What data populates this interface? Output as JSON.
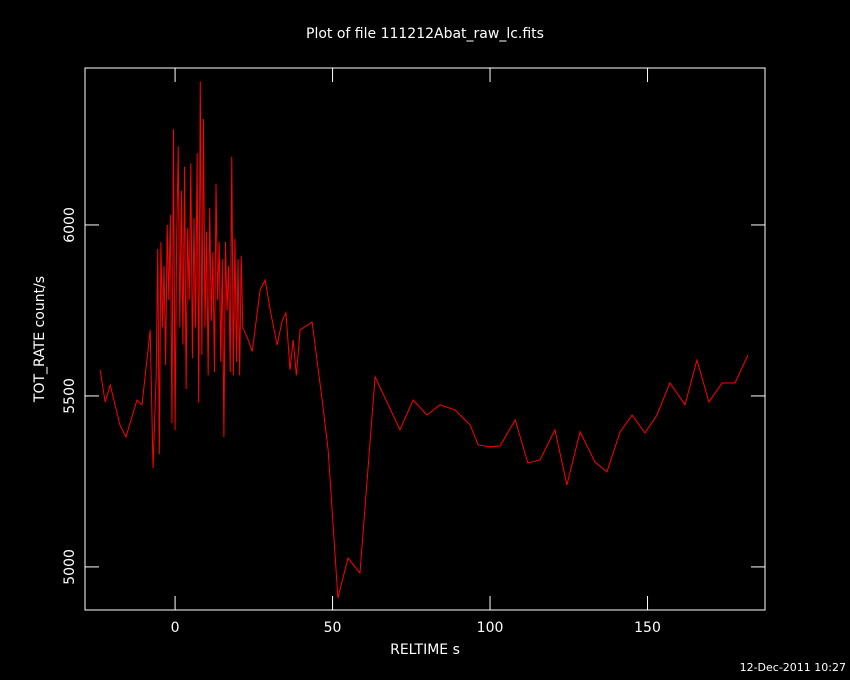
{
  "chart_data": {
    "type": "line",
    "title": "Plot of file 111212Abat_raw_lc.fits",
    "x_label": "RELTIME  s",
    "y_label": "TOT_RATE  count/s",
    "footer": "12-Dec-2011 10:27",
    "x": [
      -23.8,
      -22.2,
      -20.6,
      -17.5,
      -15.6,
      -12.1,
      -10.5,
      -7.9,
      -7.0,
      -6,
      -5.5,
      -5,
      -4.5,
      -4,
      -3.5,
      -3,
      -2.5,
      -2,
      -1.5,
      -1,
      -0.5,
      0,
      0.5,
      1,
      1.5,
      2,
      2.5,
      3,
      3.5,
      4,
      4.5,
      5,
      5.5,
      6,
      6.5,
      7,
      7.5,
      8,
      8.5,
      9,
      9.5,
      10,
      10.5,
      11,
      11.5,
      12,
      12.5,
      13,
      13.5,
      14,
      14.5,
      15,
      15.5,
      16,
      16.5,
      17,
      17.5,
      18,
      18.5,
      19,
      19.5,
      20,
      20.5,
      21,
      21.5,
      23.2,
      24.5,
      27,
      28.6,
      30.2,
      32.4,
      34,
      35.2,
      36.5,
      37.5,
      38.5,
      39.7,
      43.5,
      46.7,
      48.6,
      51.7,
      54.9,
      58.7,
      63.5,
      71.4,
      75.6,
      80,
      84.1,
      88.9,
      93.7,
      96.2,
      100,
      103.2,
      108,
      112,
      115.9,
      120.6,
      124.4,
      128.6,
      133.3,
      137.1,
      141.3,
      145.1,
      149.2,
      153,
      157.1,
      161.9,
      165.7,
      169.5,
      173.7,
      177.8,
      181.9
    ],
    "series": [
      {
        "name": "TOT_RATE",
        "color": "#ff0000",
        "values": [
          5576,
          5482,
          5532,
          5415,
          5380,
          5488,
          5474,
          5693,
          5289,
          5560,
          5930,
          5330,
          5950,
          5700,
          5880,
          5590,
          6000,
          5780,
          6030,
          5420,
          6280,
          5400,
          5960,
          6230,
          5700,
          6100,
          5650,
          6170,
          5520,
          5990,
          5780,
          6180,
          5610,
          6020,
          5700,
          6210,
          5480,
          6420,
          5620,
          6310,
          5700,
          5980,
          5560,
          6050,
          5720,
          5920,
          5570,
          6120,
          5780,
          5950,
          5600,
          5900,
          5380,
          5950,
          5750,
          5880,
          5570,
          6200,
          5560,
          5960,
          5600,
          5900,
          5560,
          5910,
          5700,
          5664,
          5630,
          5810,
          5839,
          5751,
          5649,
          5720,
          5743,
          5576,
          5664,
          5560,
          5693,
          5716,
          5488,
          5342,
          4909,
          5026,
          4982,
          5556,
          5401,
          5488,
          5444,
          5474,
          5459,
          5415,
          5357,
          5351,
          5354,
          5430,
          5304,
          5313,
          5401,
          5240,
          5395,
          5307,
          5278,
          5395,
          5444,
          5392,
          5444,
          5538,
          5474,
          5605,
          5482,
          5538,
          5538,
          5620
        ]
      }
    ],
    "xlim": [
      -28.6,
      187.3
    ],
    "ylim": [
      4874,
      6459
    ],
    "xticks": [
      0,
      50,
      100,
      150
    ],
    "yticks": [
      5000,
      5500,
      6000
    ]
  }
}
